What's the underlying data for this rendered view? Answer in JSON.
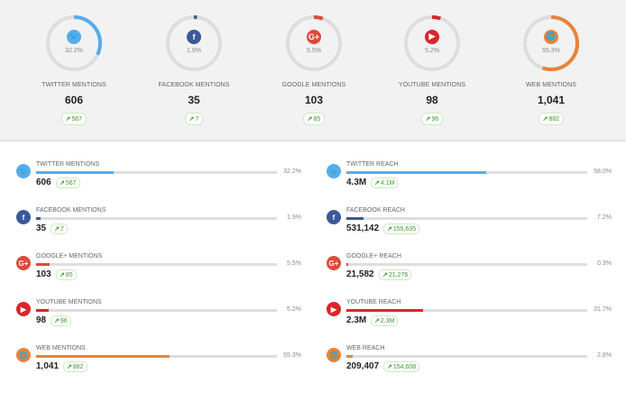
{
  "colors": {
    "twitter": "#55acee",
    "facebook": "#3b5998",
    "google": "#dd4b39",
    "youtube": "#d9252a",
    "web": "#e8833a",
    "track": "#dddddd",
    "badge_text": "#3a9a2a"
  },
  "summary": [
    {
      "id": "twitter",
      "icon": "twitter-icon",
      "glyph": "🐦",
      "pct": "32.2%",
      "pct_value": 0.322,
      "label": "TWITTER MENTIONS",
      "count": "606",
      "change": "567"
    },
    {
      "id": "facebook",
      "icon": "facebook-icon",
      "glyph": "f",
      "pct": "1.9%",
      "pct_value": 0.019,
      "label": "FACEBOOK MENTIONS",
      "count": "35",
      "change": "7"
    },
    {
      "id": "google",
      "icon": "google-plus-icon",
      "glyph": "G+",
      "pct": "5.5%",
      "pct_value": 0.055,
      "label": "GOOGLE MENTIONS",
      "count": "103",
      "change": "85"
    },
    {
      "id": "youtube",
      "icon": "youtube-icon",
      "glyph": "▶",
      "pct": "5.2%",
      "pct_value": 0.052,
      "label": "YOUTUBE MENTIONS",
      "count": "98",
      "change": "96"
    },
    {
      "id": "web",
      "icon": "globe-icon",
      "glyph": "🌐",
      "pct": "55.3%",
      "pct_value": 0.553,
      "label": "WEB MENTIONS",
      "count": "1,041",
      "change": "882"
    }
  ],
  "mentions": [
    {
      "id": "twitter",
      "icon": "twitter-icon",
      "glyph": "🐦",
      "label": "TWITTER MENTIONS",
      "pct": "32.2%",
      "pct_value": 0.322,
      "count": "606",
      "change": "567"
    },
    {
      "id": "facebook",
      "icon": "facebook-icon",
      "glyph": "f",
      "label": "FACEBOOK MENTIONS",
      "pct": "1.9%",
      "pct_value": 0.019,
      "count": "35",
      "change": "7"
    },
    {
      "id": "google",
      "icon": "google-plus-icon",
      "glyph": "G+",
      "label": "GOOGLE+ MENTIONS",
      "pct": "5.5%",
      "pct_value": 0.055,
      "count": "103",
      "change": "85"
    },
    {
      "id": "youtube",
      "icon": "youtube-icon",
      "glyph": "▶",
      "label": "YOUTUBE MENTIONS",
      "pct": "5.2%",
      "pct_value": 0.052,
      "count": "98",
      "change": "96"
    },
    {
      "id": "web",
      "icon": "globe-icon",
      "glyph": "🌐",
      "label": "WEB MENTIONS",
      "pct": "55.3%",
      "pct_value": 0.553,
      "count": "1,041",
      "change": "882"
    }
  ],
  "reach": [
    {
      "id": "twitter",
      "icon": "twitter-icon",
      "glyph": "🐦",
      "label": "TWITTER REACH",
      "pct": "58.0%",
      "pct_value": 0.58,
      "count": "4.3M",
      "change": "4.1M"
    },
    {
      "id": "facebook",
      "icon": "facebook-icon",
      "glyph": "f",
      "label": "FACEBOOK REACH",
      "pct": "7.2%",
      "pct_value": 0.072,
      "count": "531,142",
      "change": "155,635"
    },
    {
      "id": "google",
      "icon": "google-plus-icon",
      "glyph": "G+",
      "label": "GOOGLE+ REACH",
      "pct": "0.3%",
      "pct_value": 0.003,
      "count": "21,582",
      "change": "21,276"
    },
    {
      "id": "youtube",
      "icon": "youtube-icon",
      "glyph": "▶",
      "label": "YOUTUBE REACH",
      "pct": "31.7%",
      "pct_value": 0.317,
      "count": "2.3M",
      "change": "2.3M"
    },
    {
      "id": "web",
      "icon": "globe-icon",
      "glyph": "🌐",
      "label": "WEB REACH",
      "pct": "2.8%",
      "pct_value": 0.028,
      "count": "209,407",
      "change": "154,608"
    }
  ]
}
